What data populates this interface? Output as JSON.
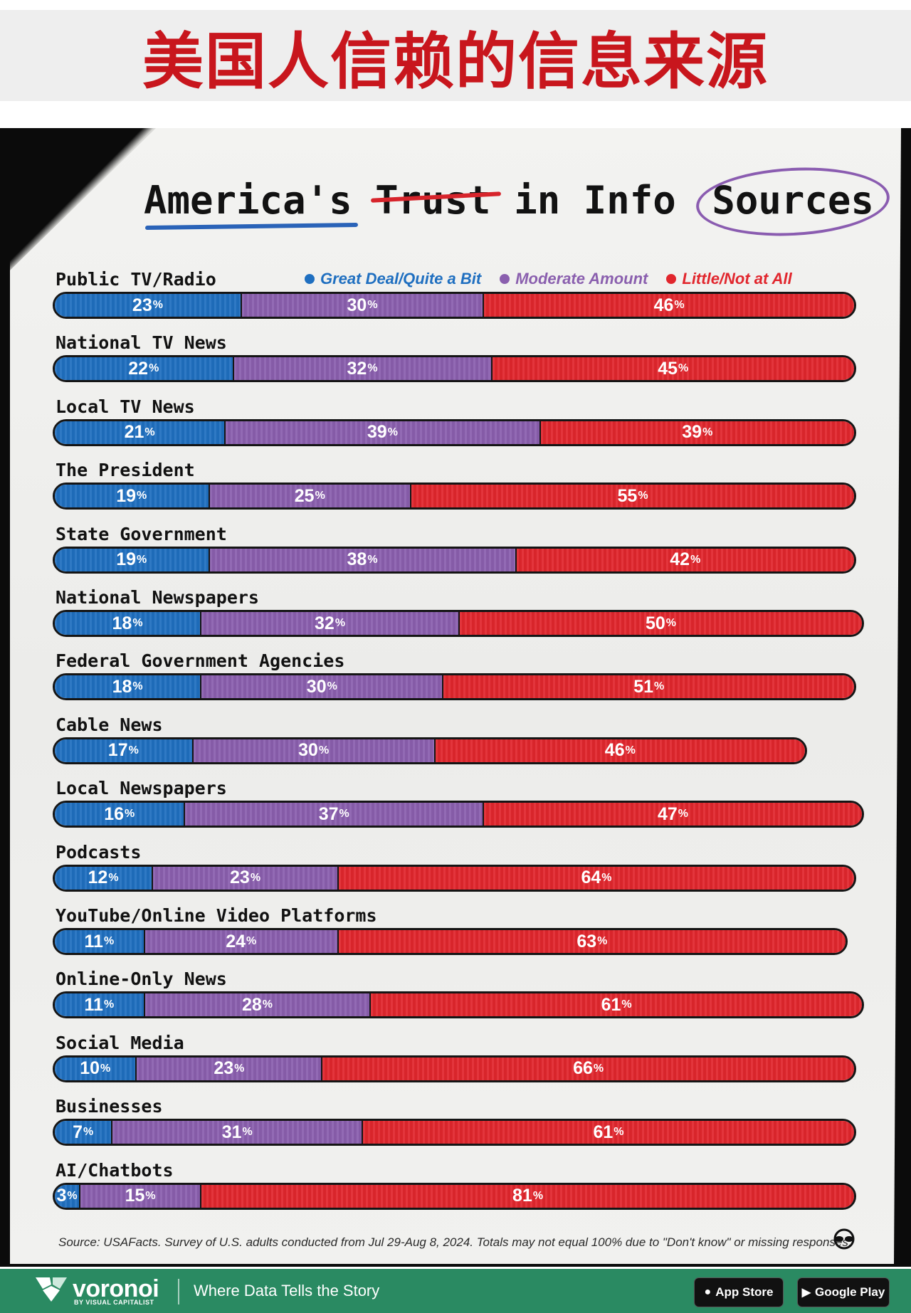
{
  "header": {
    "title": "美国人信赖的信息来源"
  },
  "poster": {
    "title_parts": [
      "America's",
      "Trust",
      "in",
      "Info",
      "Sources"
    ]
  },
  "legend": [
    {
      "label": "Great Deal/Quite a Bit",
      "color": "#1f6fc0"
    },
    {
      "label": "Moderate Amount",
      "color": "#8a5fae"
    },
    {
      "label": "Little/Not at All",
      "color": "#e1262d"
    }
  ],
  "chart_data": {
    "type": "bar",
    "orientation": "horizontal-stacked-percent",
    "title": "America's Trust in Info Sources",
    "categories": [
      "Public TV/Radio",
      "National TV News",
      "Local TV News",
      "The President",
      "State Government",
      "National Newspapers",
      "Federal Government Agencies",
      "Cable News",
      "Local Newspapers",
      "Podcasts",
      "YouTube/Online Video Platforms",
      "Online-Only News",
      "Social Media",
      "Businesses",
      "AI/Chatbots"
    ],
    "series": [
      {
        "name": "Great Deal/Quite a Bit",
        "values": [
          23,
          22,
          21,
          19,
          19,
          18,
          18,
          17,
          16,
          12,
          11,
          11,
          10,
          7,
          3
        ]
      },
      {
        "name": "Moderate Amount",
        "values": [
          30,
          32,
          39,
          25,
          38,
          32,
          30,
          30,
          37,
          23,
          24,
          28,
          23,
          31,
          15
        ]
      },
      {
        "name": "Little/Not at All",
        "values": [
          46,
          45,
          39,
          55,
          42,
          50,
          51,
          46,
          47,
          64,
          63,
          61,
          66,
          61,
          81
        ]
      }
    ],
    "legend": "top-right",
    "unit": "%"
  },
  "source": "Source: USAFacts. Survey of U.S. adults conducted from Jul 29-Aug 8, 2024. Totals may not equal 100% due to \"Don't know\" or missing responses.",
  "footer": {
    "brand": "voronoi",
    "brand_sub": "BY VISUAL CAPITALIST",
    "tagline": "Where Data Tells the Story",
    "app_store": "App Store",
    "google_play": "Google Play"
  }
}
